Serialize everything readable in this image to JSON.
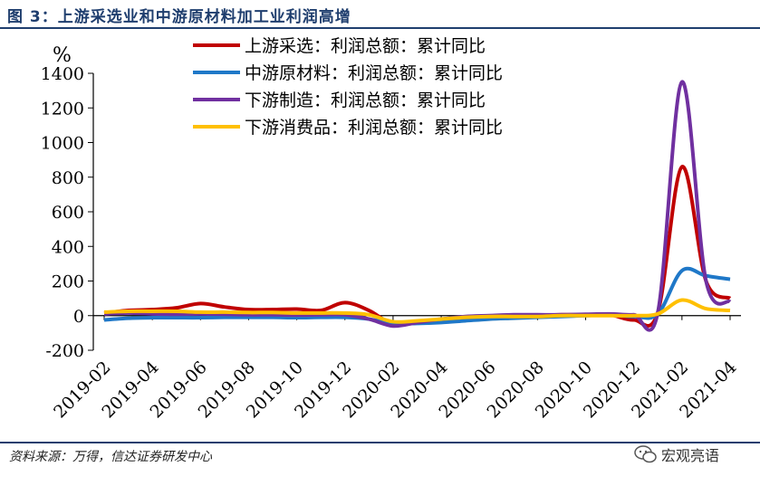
{
  "figure": {
    "title": "图 3：上游采选业和中游原材料加工业利润高增",
    "source": "资料来源：万得，信达证券研发中心",
    "watermark": "宏观亮语",
    "watermark_icon": "wechat-icon"
  },
  "chart_data": {
    "type": "line",
    "unit_label": "%",
    "ylim": [
      -200,
      1400
    ],
    "yticks": [
      -200,
      0,
      200,
      400,
      600,
      800,
      1000,
      1200,
      1400
    ],
    "xtick_labels": [
      "2019-02",
      "2019-04",
      "2019-06",
      "2019-08",
      "2019-10",
      "2019-12",
      "2020-02",
      "2020-04",
      "2020-06",
      "2020-08",
      "2020-10",
      "2020-12",
      "2021-02",
      "2021-04"
    ],
    "x": [
      "2019-02",
      "2019-03",
      "2019-04",
      "2019-05",
      "2019-06",
      "2019-07",
      "2019-08",
      "2019-09",
      "2019-10",
      "2019-11",
      "2019-12",
      "2020-01",
      "2020-02",
      "2020-03",
      "2020-04",
      "2020-05",
      "2020-06",
      "2020-07",
      "2020-08",
      "2020-09",
      "2020-10",
      "2020-11",
      "2020-12",
      "2021-01",
      "2021-02",
      "2021-03",
      "2021-04"
    ],
    "grid": false,
    "legend_position": "top-center",
    "series": [
      {
        "name": "上游采选：利润总额：累计同比",
        "color": "#c00000",
        "values": [
          15,
          30,
          35,
          45,
          70,
          50,
          35,
          35,
          38,
          30,
          75,
          30,
          -50,
          -40,
          -35,
          -20,
          -10,
          -5,
          0,
          5,
          5,
          5,
          -25,
          20,
          860,
          200,
          100
        ]
      },
      {
        "name": "中游原材料：利润总额：累计同比",
        "color": "#1f78c8",
        "values": [
          -25,
          -15,
          -12,
          -12,
          -12,
          -10,
          -10,
          -10,
          -12,
          -10,
          -10,
          -20,
          -45,
          -45,
          -40,
          -30,
          -20,
          -15,
          -10,
          -5,
          0,
          5,
          -5,
          10,
          260,
          230,
          210
        ]
      },
      {
        "name": "下游制造：利润总额：累计同比",
        "color": "#7030a0",
        "values": [
          10,
          15,
          10,
          8,
          10,
          8,
          5,
          5,
          3,
          5,
          5,
          -20,
          -60,
          -40,
          -20,
          -5,
          0,
          5,
          5,
          5,
          8,
          10,
          5,
          20,
          1350,
          200,
          80
        ]
      },
      {
        "name": "下游消费品：利润总额：累计同比",
        "color": "#ffc000",
        "values": [
          20,
          25,
          25,
          25,
          20,
          20,
          18,
          18,
          15,
          15,
          15,
          5,
          -35,
          -30,
          -20,
          -10,
          -5,
          -5,
          -5,
          0,
          0,
          0,
          0,
          10,
          90,
          40,
          30
        ]
      }
    ]
  }
}
